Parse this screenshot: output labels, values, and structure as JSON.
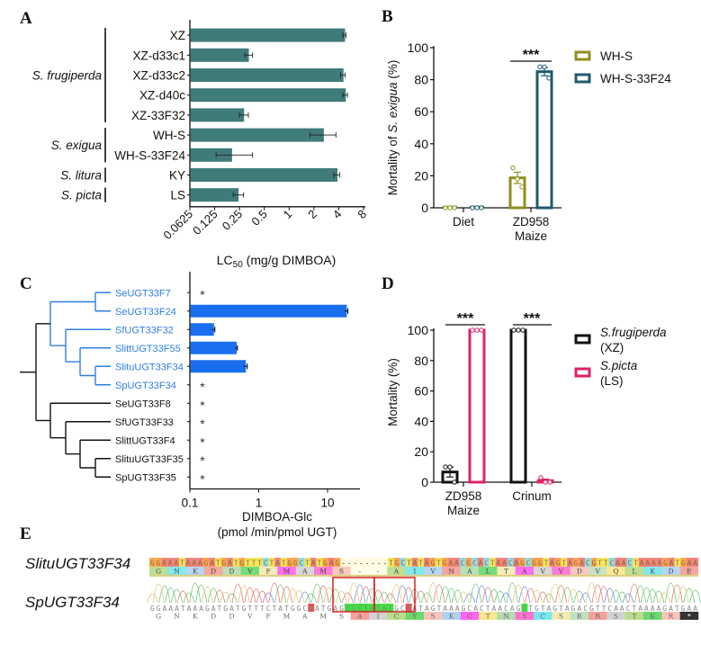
{
  "panels": {
    "a": "A",
    "b": "B",
    "c": "C",
    "d": "D",
    "e": "E"
  },
  "colors": {
    "teal_bar": "#3f7b79",
    "wh_s": "#8f8f1f",
    "wh_s_33f24": "#1f5a6e",
    "blue": "#1a6ff0",
    "blue_text": "#2f7fe0",
    "black": "#111111",
    "pink": "#e0206a"
  },
  "chart_data": [
    {
      "id": "A",
      "type": "bar",
      "orientation": "horizontal",
      "xscale": "log2",
      "xlabel_main": "LC",
      "xlabel_sub": "50",
      "xlabel_rest": " (mg/g DIMBOA)",
      "xticks": [
        "0.0625",
        "0.125",
        "0.25",
        "0.5",
        "1",
        "2",
        "4",
        "8"
      ],
      "xlim": [
        0.0625,
        8
      ],
      "categories": [
        "XZ",
        "XZ-d33c1",
        "XZ-d33c2",
        "XZ-d40c",
        "XZ-33F32",
        "WH-S",
        "WH-S-33F24",
        "KY",
        "LS"
      ],
      "values": [
        4.7,
        0.32,
        4.5,
        4.8,
        0.28,
        2.6,
        0.2,
        3.8,
        0.24
      ],
      "err_low": [
        4.5,
        0.29,
        4.2,
        4.5,
        0.25,
        1.8,
        0.13,
        3.5,
        0.21
      ],
      "err_high": [
        4.9,
        0.36,
        4.8,
        5.1,
        0.32,
        3.7,
        0.36,
        4.1,
        0.28
      ],
      "groups": [
        {
          "label": "S. frugiperda",
          "from": 0,
          "to": 4
        },
        {
          "label": "S. exigua",
          "from": 5,
          "to": 6
        },
        {
          "label": "S. litura",
          "from": 7,
          "to": 7
        },
        {
          "label": "S. picta",
          "from": 8,
          "to": 8
        }
      ]
    },
    {
      "id": "B",
      "type": "bar",
      "ylabel_pre": "Mortality of ",
      "ylabel_it": "S. exigua",
      "ylabel_post": " (%)",
      "ylim": [
        0,
        100
      ],
      "yticks": [
        "0",
        "20",
        "40",
        "60",
        "80",
        "100"
      ],
      "categories": [
        [
          "Diet"
        ],
        [
          "ZD958",
          "Maize"
        ]
      ],
      "series": [
        {
          "name": "WH-S",
          "values": [
            0,
            18.7
          ],
          "err": [
            0,
            3.5
          ],
          "points": [
            [
              0,
              0,
              0
            ],
            [
              25,
              18,
              13
            ]
          ]
        },
        {
          "name": "WH-S-33F24",
          "values": [
            0,
            85
          ],
          "err": [
            0,
            2.5
          ],
          "points": [
            [
              0,
              0,
              0
            ],
            [
              88,
              88,
              81
            ]
          ]
        }
      ],
      "annotation": "***"
    },
    {
      "id": "C",
      "type": "bar",
      "orientation": "horizontal",
      "xscale": "log10",
      "xlabel_line1": "DIMBOA-Glc",
      "xlabel_line2": "(pmol /min/pmol UGT)",
      "xticks": [
        "0.1",
        "1",
        "10"
      ],
      "xlim": [
        0.1,
        30
      ],
      "categories": [
        "SeUGT33F7",
        "SeUGT33F24",
        "SfUGT33F32",
        "SlittUGT33F55",
        "SlituUGT33F34",
        "SpUGT33F34",
        "SeUGT33F8",
        "SfUGT33F33",
        "SlittUGT33F4",
        "SlituUGT33F35",
        "SpUGT33F35"
      ],
      "highlight": [
        true,
        true,
        true,
        true,
        true,
        true,
        false,
        false,
        false,
        false,
        false
      ],
      "values": [
        null,
        18.7,
        0.22,
        0.47,
        0.64,
        null,
        null,
        null,
        null,
        null,
        null
      ],
      "err": [
        0,
        1.0,
        0.01,
        0.02,
        0.04,
        0,
        0,
        0,
        0,
        0,
        0
      ],
      "nd_marker": "*"
    },
    {
      "id": "D",
      "type": "bar",
      "ylabel": "Mortality (%)",
      "ylim": [
        0,
        100
      ],
      "yticks": [
        "0",
        "20",
        "40",
        "60",
        "80",
        "100"
      ],
      "categories": [
        [
          "ZD958",
          "Maize"
        ],
        [
          "Crinum"
        ]
      ],
      "series": [
        {
          "name_it": "S.frugiperda",
          "name_sub": "(XZ)",
          "values": [
            6.7,
            100
          ],
          "err": [
            3.3,
            0
          ],
          "points": [
            [
              10,
              10,
              0
            ],
            [
              100,
              100,
              100
            ]
          ]
        },
        {
          "name_it": "S.picta",
          "name_sub": "(LS)",
          "values": [
            100,
            1
          ],
          "err": [
            0,
            1
          ],
          "points": [
            [
              100,
              100,
              100
            ],
            [
              3,
              0,
              0
            ]
          ]
        }
      ],
      "annotation": "***"
    }
  ],
  "panel_e": {
    "ref_name": "SlituUGT33F34",
    "sample_name": "SpUGT33F34",
    "ref_seq_left": "GGAAATAAAGATGATGTTTCTATGGCTATGAG",
    "ref_gap": "--------",
    "ref_seq_right": "TGCTATAGTGAACGCACTAACAGCGGTAGTAGACGTTCAACTAAAAGATGAA",
    "ref_aa": [
      "G",
      "N",
      "K",
      "D",
      "D",
      "V",
      "F",
      "M",
      "A",
      "M",
      "S",
      "-",
      "-",
      "A",
      "I",
      "V",
      "N",
      "A",
      "L",
      "T",
      "A",
      "V",
      "V",
      "D",
      "V",
      "Q",
      "L",
      "K",
      "D",
      "E"
    ],
    "sample_seq": "GGAAATAAAGATGATGTTTCTATGGCAATGAGTGCTATATGCTATAGTAAAGCACTAACAGCTGTAGTAGACGTTCAACTAAAAGATGAA",
    "sample_aa": [
      "G",
      "N",
      "K",
      "D",
      "D",
      "V",
      "F",
      "M",
      "A",
      "M",
      "S",
      "A",
      "I",
      "C",
      "Y",
      "S",
      "K",
      "C",
      "T",
      "N",
      "S",
      "C",
      "S",
      "R",
      "R",
      "S",
      "T",
      "K",
      "R",
      "*"
    ]
  }
}
